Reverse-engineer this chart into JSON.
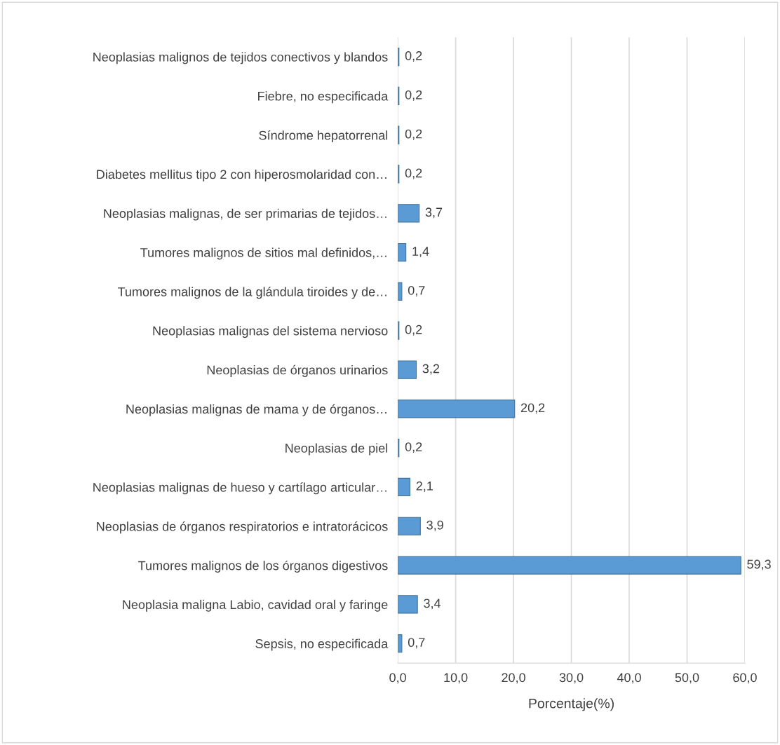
{
  "chart_data": {
    "type": "bar",
    "orientation": "horizontal",
    "xlabel": "Porcentaje(%)",
    "categories": [
      "Neoplasias malignos de tejidos conectivos y blandos",
      "Fiebre, no especificada",
      "Síndrome hepatorrenal",
      "Diabetes mellitus tipo 2 con hiperosmolaridad con…",
      "Neoplasias malignas, de ser primarias de tejidos…",
      "Tumores malignos de sitios mal definidos,…",
      "Tumores malignos de la glándula tiroides y de…",
      "Neoplasias malignas del sistema nervioso",
      "Neoplasias de órganos urinarios",
      "Neoplasias malignas de mama y de órganos…",
      "Neoplasias de piel",
      "Neoplasias malignas de hueso y cartílago articular…",
      "Neoplasias de órganos respiratorios e intratorácicos",
      "Tumores malignos de los órganos digestivos",
      "Neoplasia maligna Labio, cavidad oral y faringe",
      "Sepsis, no especificada"
    ],
    "values": [
      0.2,
      0.2,
      0.2,
      0.2,
      3.7,
      1.4,
      0.7,
      0.2,
      3.2,
      20.2,
      0.2,
      2.1,
      3.9,
      59.3,
      3.4,
      0.7
    ],
    "value_labels": [
      "0,2",
      "0,2",
      "0,2",
      "0,2",
      "3,7",
      "1,4",
      "0,7",
      "0,2",
      "3,2",
      "20,2",
      "0,2",
      "2,1",
      "3,9",
      "59,3",
      "3,4",
      "0,7"
    ],
    "color": "#5b9bd5",
    "xlim": [
      0,
      60
    ],
    "xticks": [
      {
        "value": 0,
        "label": "0,0"
      },
      {
        "value": 10,
        "label": "10,0"
      },
      {
        "value": 20,
        "label": "20,0"
      },
      {
        "value": 30,
        "label": "30,0"
      },
      {
        "value": 40,
        "label": "40,0"
      },
      {
        "value": 50,
        "label": "50,0"
      },
      {
        "value": 60,
        "label": "60,0"
      }
    ],
    "grid": "x"
  }
}
